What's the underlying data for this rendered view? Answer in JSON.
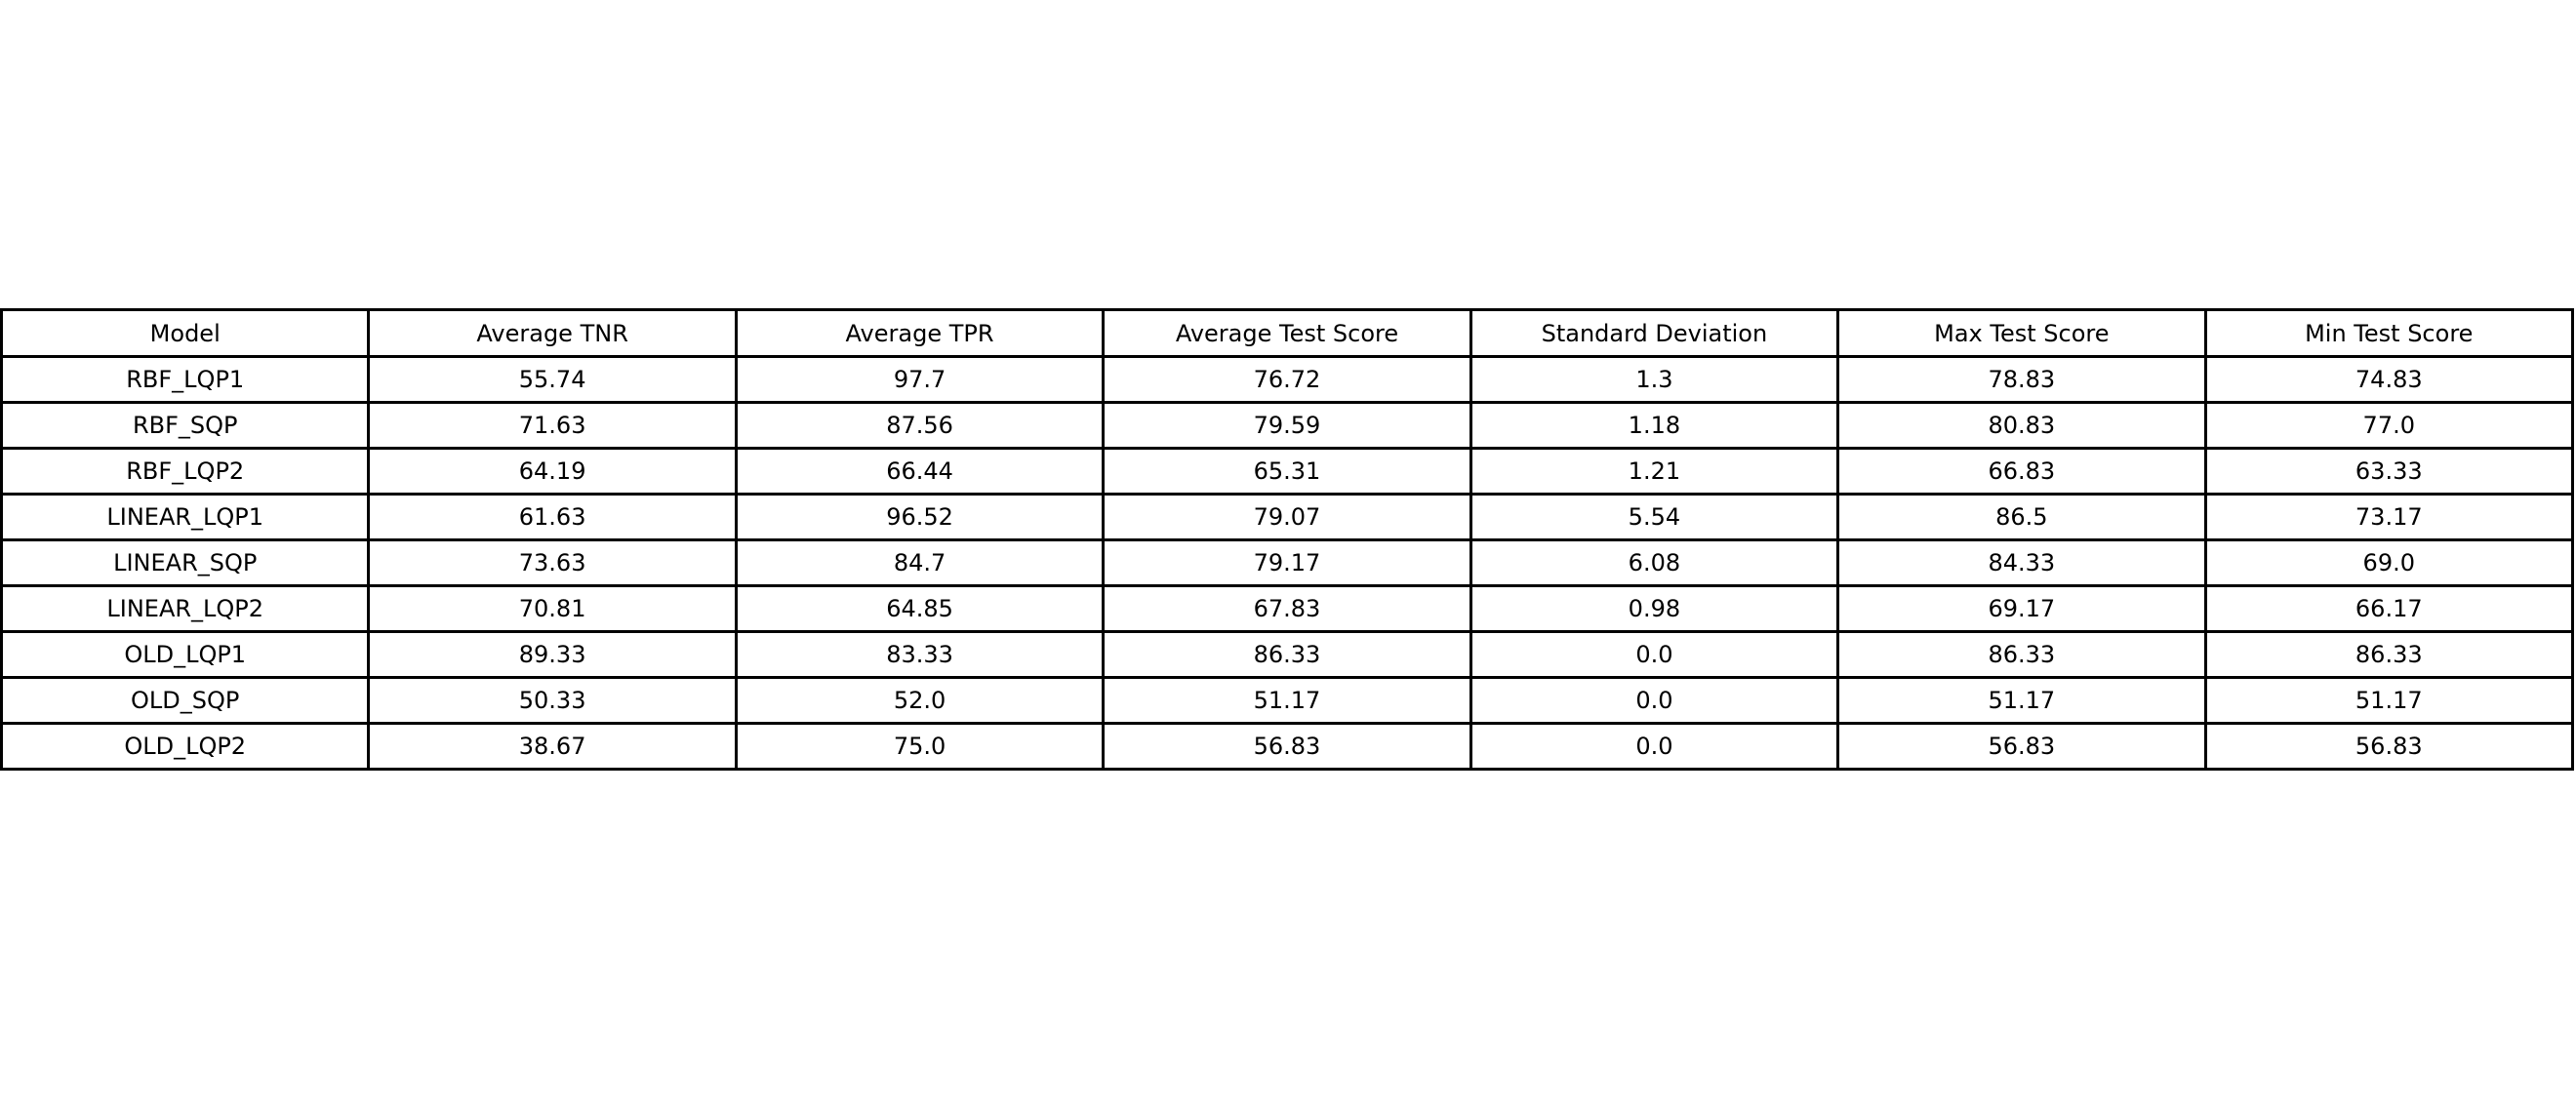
{
  "chart_data": {
    "type": "table",
    "title": "",
    "columns": [
      "Model",
      "Average TNR",
      "Average TPR",
      "Average Test Score",
      "Standard Deviation",
      "Max Test Score",
      "Min Test Score"
    ],
    "rows": [
      [
        "RBF_LQP1",
        "55.74",
        "97.7",
        "76.72",
        "1.3",
        "78.83",
        "74.83"
      ],
      [
        "RBF_SQP",
        "71.63",
        "87.56",
        "79.59",
        "1.18",
        "80.83",
        "77.0"
      ],
      [
        "RBF_LQP2",
        "64.19",
        "66.44",
        "65.31",
        "1.21",
        "66.83",
        "63.33"
      ],
      [
        "LINEAR_LQP1",
        "61.63",
        "96.52",
        "79.07",
        "5.54",
        "86.5",
        "73.17"
      ],
      [
        "LINEAR_SQP",
        "73.63",
        "84.7",
        "79.17",
        "6.08",
        "84.33",
        "69.0"
      ],
      [
        "LINEAR_LQP2",
        "70.81",
        "64.85",
        "67.83",
        "0.98",
        "69.17",
        "66.17"
      ],
      [
        "OLD_LQP1",
        "89.33",
        "83.33",
        "86.33",
        "0.0",
        "86.33",
        "86.33"
      ],
      [
        "OLD_SQP",
        "50.33",
        "52.0",
        "51.17",
        "0.0",
        "51.17",
        "51.17"
      ],
      [
        "OLD_LQP2",
        "38.67",
        "75.0",
        "56.83",
        "0.0",
        "56.83",
        "56.83"
      ]
    ]
  },
  "colors": {
    "background": "#ffffff",
    "border": "#000000",
    "text": "#000000"
  }
}
